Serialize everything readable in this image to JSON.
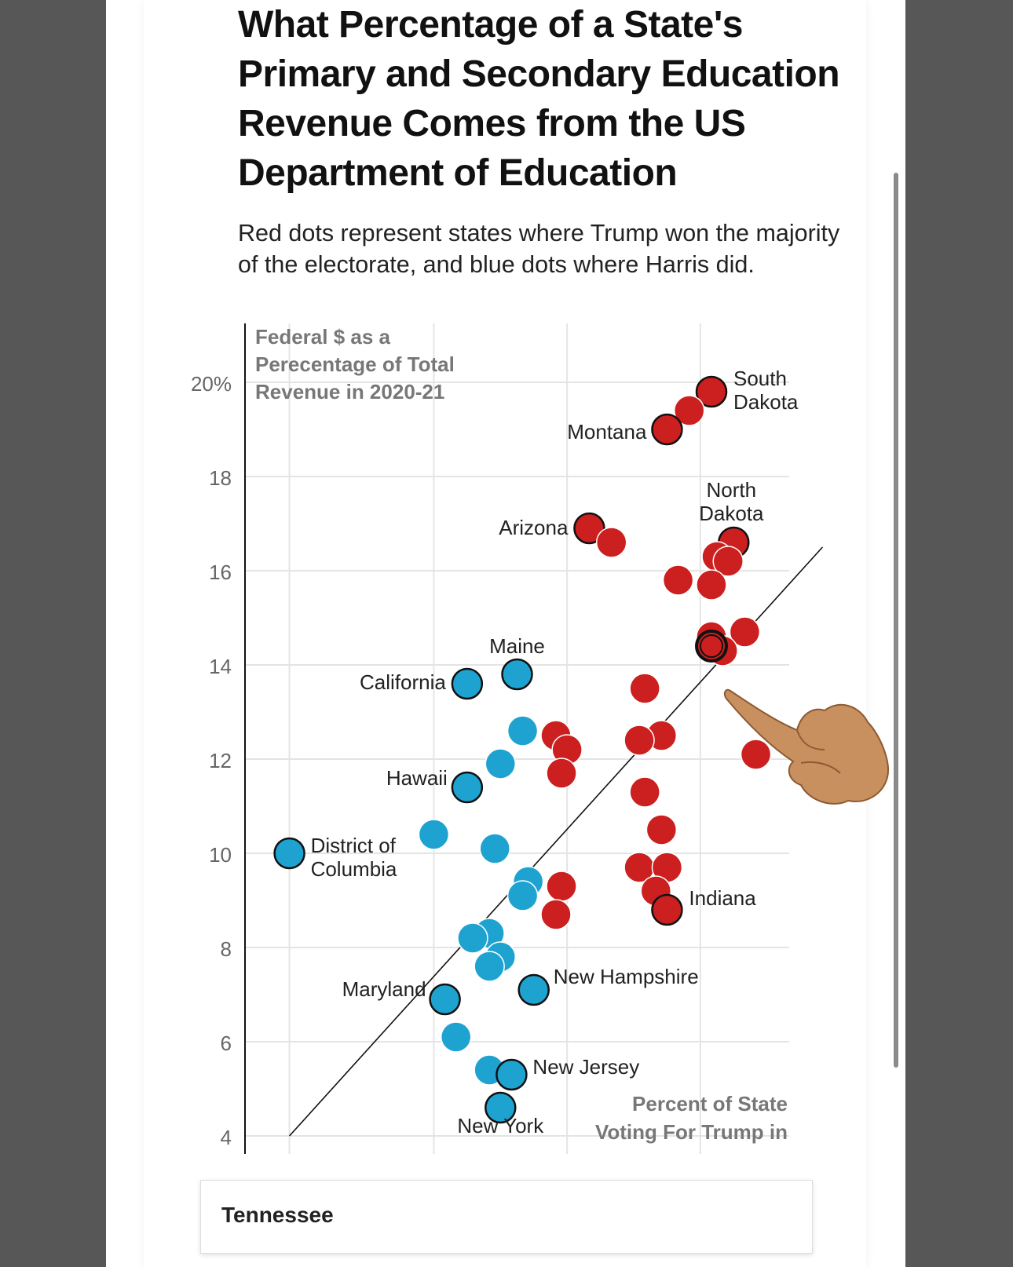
{
  "title": "What Percentage of a State's Primary and Secondary Education Revenue Comes from the US Department of Education",
  "subtitle": "Red dots represent states where Trump won the majority of the electorate, and blue dots where Harris did.",
  "colors": {
    "trump": "#cc1f1f",
    "harris": "#1ea3d0",
    "grid": "#e4e4e4",
    "axis": "#111111",
    "axis_title": "#777777"
  },
  "tooltip": {
    "label": "Tennessee"
  },
  "chart_data": {
    "type": "scatter",
    "ylabel": "Federal $ as a Perecentage of Total Revenue in 2020-21",
    "xlabel": "Percent of State Voting For Trump in",
    "ylim": [
      4,
      21.2
    ],
    "xlim": [
      18,
      67
    ],
    "y_ticks": [
      {
        "value": 20,
        "label": "20%"
      },
      {
        "value": 18,
        "label": "18"
      },
      {
        "value": 16,
        "label": "16"
      },
      {
        "value": 14,
        "label": "14"
      },
      {
        "value": 12,
        "label": "12"
      },
      {
        "value": 10,
        "label": "10"
      },
      {
        "value": 8,
        "label": "8"
      },
      {
        "value": 6,
        "label": "6"
      },
      {
        "value": 4,
        "label": "4"
      }
    ],
    "x_gridlines": [
      22,
      35,
      47,
      59
    ],
    "trend_line": {
      "x1": 22,
      "y1": 4,
      "x2": 70,
      "y2": 16.5
    },
    "highlighted": "Tennessee",
    "series": [
      {
        "name": "Trump",
        "points": [
          {
            "x": 60,
            "y": 19.8,
            "label": "South Dakota"
          },
          {
            "x": 58,
            "y": 19.4
          },
          {
            "x": 56,
            "y": 19.0,
            "label": "Montana"
          },
          {
            "x": 49,
            "y": 16.9,
            "label": "Arizona"
          },
          {
            "x": 51,
            "y": 16.6
          },
          {
            "x": 62,
            "y": 16.6,
            "label": "North Dakota"
          },
          {
            "x": 60.5,
            "y": 16.3
          },
          {
            "x": 61.5,
            "y": 16.2
          },
          {
            "x": 57,
            "y": 15.8
          },
          {
            "x": 60,
            "y": 15.7
          },
          {
            "x": 60,
            "y": 14.6
          },
          {
            "x": 63,
            "y": 14.7
          },
          {
            "x": 61,
            "y": 14.3
          },
          {
            "x": 60,
            "y": 14.4,
            "label": "Tennessee"
          },
          {
            "x": 54,
            "y": 13.5
          },
          {
            "x": 55.5,
            "y": 12.5
          },
          {
            "x": 53.5,
            "y": 12.4
          },
          {
            "x": 46,
            "y": 12.5
          },
          {
            "x": 47,
            "y": 12.2
          },
          {
            "x": 46.5,
            "y": 11.7
          },
          {
            "x": 64,
            "y": 12.1
          },
          {
            "x": 54,
            "y": 11.3
          },
          {
            "x": 55.5,
            "y": 10.5
          },
          {
            "x": 53.5,
            "y": 9.7
          },
          {
            "x": 56,
            "y": 9.7
          },
          {
            "x": 55,
            "y": 9.2
          },
          {
            "x": 46.5,
            "y": 9.3
          },
          {
            "x": 46,
            "y": 8.7
          },
          {
            "x": 56,
            "y": 8.8,
            "label": "Indiana"
          }
        ]
      },
      {
        "name": "Harris",
        "points": [
          {
            "x": 38,
            "y": 13.6,
            "label": "California"
          },
          {
            "x": 42.5,
            "y": 13.8,
            "label": "Maine"
          },
          {
            "x": 43,
            "y": 12.6
          },
          {
            "x": 41,
            "y": 11.9
          },
          {
            "x": 38,
            "y": 11.4,
            "label": "Hawaii"
          },
          {
            "x": 35,
            "y": 10.4
          },
          {
            "x": 40.5,
            "y": 10.1
          },
          {
            "x": 22,
            "y": 10.0,
            "label": "District of Columbia"
          },
          {
            "x": 43.5,
            "y": 9.4
          },
          {
            "x": 43,
            "y": 9.1
          },
          {
            "x": 40,
            "y": 8.3
          },
          {
            "x": 38.5,
            "y": 8.2
          },
          {
            "x": 41,
            "y": 7.8
          },
          {
            "x": 40,
            "y": 7.6
          },
          {
            "x": 44,
            "y": 7.1,
            "label": "New Hampshire"
          },
          {
            "x": 36,
            "y": 6.9,
            "label": "Maryland"
          },
          {
            "x": 37,
            "y": 6.1
          },
          {
            "x": 40,
            "y": 5.4
          },
          {
            "x": 42,
            "y": 5.3,
            "label": "New Jersey"
          },
          {
            "x": 41,
            "y": 4.6,
            "label": "New York"
          }
        ]
      }
    ],
    "annotations": [
      {
        "text": "South",
        "anchor": "South Dakota",
        "line": 1
      },
      {
        "text": "Dakota",
        "anchor": "South Dakota",
        "line": 2
      },
      {
        "text": "Montana",
        "anchor": "Montana"
      },
      {
        "text": "North",
        "anchor": "North Dakota",
        "line": 1
      },
      {
        "text": "Dakota",
        "anchor": "North Dakota",
        "line": 2
      },
      {
        "text": "Arizona",
        "anchor": "Arizona"
      },
      {
        "text": "Maine",
        "anchor": "Maine"
      },
      {
        "text": "California",
        "anchor": "California"
      },
      {
        "text": "Hawaii",
        "anchor": "Hawaii"
      },
      {
        "text": "District of",
        "anchor": "District of Columbia",
        "line": 1
      },
      {
        "text": "Columbia",
        "anchor": "District of Columbia",
        "line": 2
      },
      {
        "text": "Indiana",
        "anchor": "Indiana"
      },
      {
        "text": "New Hampshire",
        "anchor": "New Hampshire"
      },
      {
        "text": "Maryland",
        "anchor": "Maryland"
      },
      {
        "text": "New Jersey",
        "anchor": "New Jersey"
      },
      {
        "text": "New York",
        "anchor": "New York"
      }
    ],
    "ylabel_lines": [
      "Federal $ as a",
      "Perecentage of Total",
      "Revenue in 2020-21"
    ],
    "xlabel_lines": [
      "Percent of State",
      "Voting For Trump in"
    ]
  }
}
